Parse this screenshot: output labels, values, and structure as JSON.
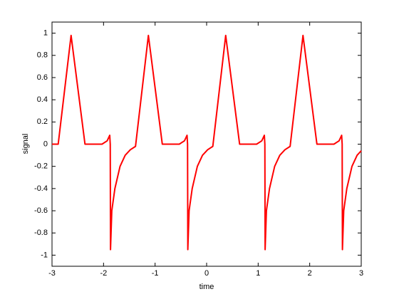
{
  "chart_data": {
    "type": "line",
    "x_label": "time",
    "y_label": "signal",
    "x": [
      -3,
      -2.88,
      -2.63,
      -2.36,
      -2.03,
      -1.93,
      -1.88,
      -1.87,
      -1.865,
      -1.84,
      -1.78,
      -1.68,
      -1.58,
      -1.48,
      -1.38,
      -1.13,
      -0.86,
      -0.53,
      -0.43,
      -0.38,
      -0.37,
      -0.365,
      -0.34,
      -0.28,
      -0.18,
      -0.08,
      0.02,
      0.12,
      0.37,
      0.64,
      0.97,
      1.07,
      1.12,
      1.13,
      1.135,
      1.16,
      1.22,
      1.32,
      1.42,
      1.52,
      1.62,
      1.87,
      2.14,
      2.47,
      2.57,
      2.62,
      2.63,
      2.635,
      2.66,
      2.72,
      2.82,
      2.92,
      3
    ],
    "series": [
      {
        "color": "#ff0000",
        "values": [
          0,
          0,
          0.98,
          0,
          0,
          0.03,
          0.08,
          0,
          -0.95,
          -0.6,
          -0.4,
          -0.2,
          -0.1,
          -0.05,
          -0.02,
          0.98,
          0,
          0,
          0.03,
          0.08,
          0,
          -0.95,
          -0.6,
          -0.4,
          -0.2,
          -0.1,
          -0.05,
          -0.02,
          0.98,
          0,
          0,
          0.03,
          0.08,
          0,
          -0.95,
          -0.6,
          -0.4,
          -0.2,
          -0.1,
          -0.05,
          -0.02,
          0.98,
          0,
          0,
          0.03,
          0.08,
          0,
          -0.95,
          -0.6,
          -0.4,
          -0.2,
          -0.1,
          -0.06
        ]
      }
    ],
    "xlim": [
      -3,
      3
    ],
    "xticks": [
      -3,
      -2,
      -1,
      0,
      1,
      2,
      3
    ],
    "ylim": [
      -1.1,
      1.1
    ],
    "yticks": [
      -1,
      -0.8,
      -0.6,
      -0.4,
      -0.2,
      0,
      0.2,
      0.4,
      0.6,
      0.8,
      1
    ],
    "grid": false
  }
}
